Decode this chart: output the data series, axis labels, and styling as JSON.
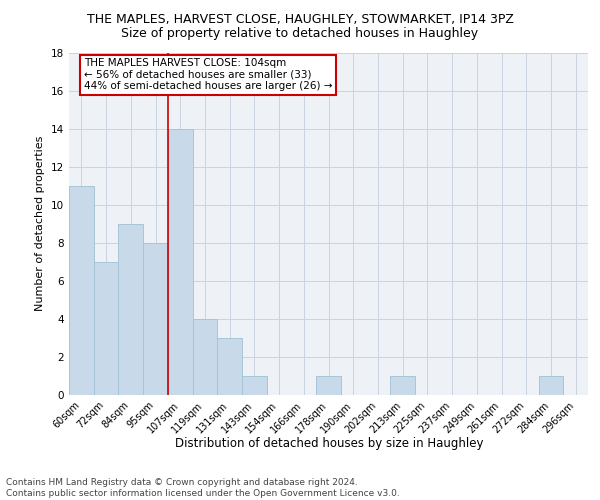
{
  "title": "THE MAPLES, HARVEST CLOSE, HAUGHLEY, STOWMARKET, IP14 3PZ",
  "subtitle": "Size of property relative to detached houses in Haughley",
  "xlabel": "Distribution of detached houses by size in Haughley",
  "ylabel": "Number of detached properties",
  "bar_labels": [
    "60sqm",
    "72sqm",
    "84sqm",
    "95sqm",
    "107sqm",
    "119sqm",
    "131sqm",
    "143sqm",
    "154sqm",
    "166sqm",
    "178sqm",
    "190sqm",
    "202sqm",
    "213sqm",
    "225sqm",
    "237sqm",
    "249sqm",
    "261sqm",
    "272sqm",
    "284sqm",
    "296sqm"
  ],
  "bar_values": [
    11,
    7,
    9,
    8,
    14,
    4,
    3,
    1,
    0,
    0,
    1,
    0,
    0,
    1,
    0,
    0,
    0,
    0,
    0,
    1,
    0
  ],
  "bar_color": "#c8d9ea",
  "bar_edge_color": "#a8c4d8",
  "bg_color": "#eef2f7",
  "red_line_index": 3.5,
  "annotation_text": "THE MAPLES HARVEST CLOSE: 104sqm\n← 56% of detached houses are smaller (33)\n44% of semi-detached houses are larger (26) →",
  "annotation_box_color": "#ffffff",
  "annotation_border_color": "#cc0000",
  "footer_text": "Contains HM Land Registry data © Crown copyright and database right 2024.\nContains public sector information licensed under the Open Government Licence v3.0.",
  "ylim": [
    0,
    18
  ],
  "yticks": [
    0,
    2,
    4,
    6,
    8,
    10,
    12,
    14,
    16,
    18
  ],
  "title_fontsize": 9,
  "subtitle_fontsize": 9,
  "ylabel_fontsize": 8,
  "xlabel_fontsize": 8.5,
  "tick_fontsize": 7,
  "footer_fontsize": 6.5,
  "annotation_fontsize": 7.5
}
